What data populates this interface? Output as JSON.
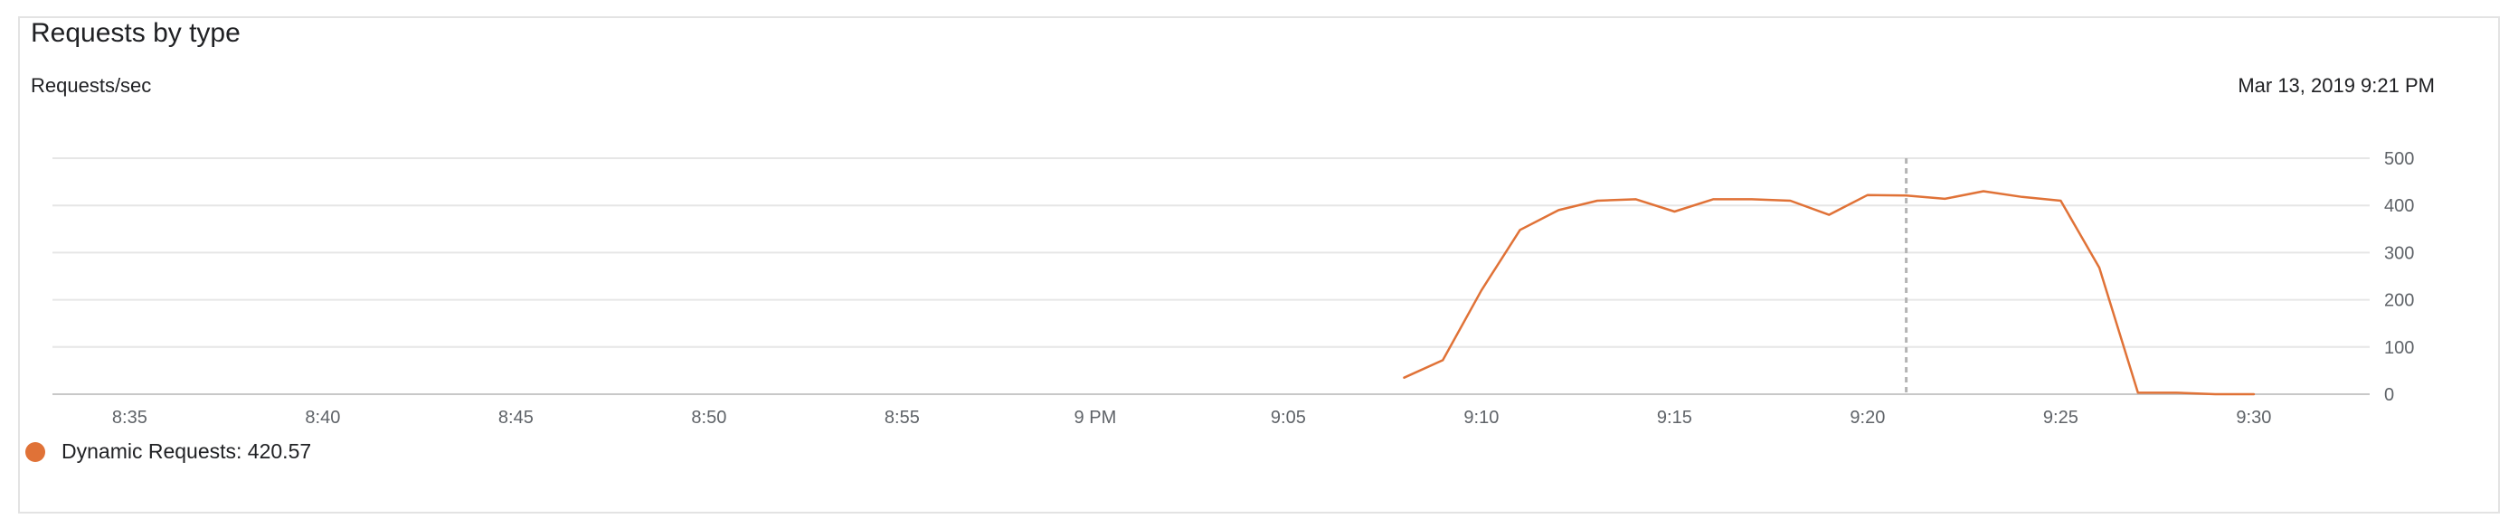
{
  "card": {
    "title": "Requests by type",
    "y_unit_label": "Requests/sec",
    "timestamp": "Mar 13, 2019 9:21 PM"
  },
  "legend": {
    "label": "Dynamic Requests: 420.57",
    "color": "#e07237"
  },
  "colors": {
    "series": "#e07237",
    "grid": "#e6e6e6",
    "axis": "#c8c8c8",
    "cursor": "#b4b4b4",
    "tick_text": "#5f6368"
  },
  "chart_data": {
    "type": "line",
    "title": "Requests by type",
    "ylabel": "Requests/sec",
    "xlabel": "",
    "xlim": [
      "8:33",
      "9:33"
    ],
    "ylim": [
      0,
      500
    ],
    "grid": true,
    "y_axis_side": "right",
    "x_ticks": [
      {
        "time": "8:35",
        "label": "8:35"
      },
      {
        "time": "8:40",
        "label": "8:40"
      },
      {
        "time": "8:45",
        "label": "8:45"
      },
      {
        "time": "8:50",
        "label": "8:50"
      },
      {
        "time": "8:55",
        "label": "8:55"
      },
      {
        "time": "9:00",
        "label": "9 PM"
      },
      {
        "time": "9:05",
        "label": "9:05"
      },
      {
        "time": "9:10",
        "label": "9:10"
      },
      {
        "time": "9:15",
        "label": "9:15"
      },
      {
        "time": "9:20",
        "label": "9:20"
      },
      {
        "time": "9:25",
        "label": "9:25"
      },
      {
        "time": "9:30",
        "label": "9:30"
      }
    ],
    "y_ticks": [
      0,
      100,
      200,
      300,
      400,
      500
    ],
    "cursor_time": "9:21",
    "series": [
      {
        "name": "Dynamic Requests",
        "color": "#e07237",
        "points": [
          {
            "time": "9:08",
            "value": 35
          },
          {
            "time": "9:09",
            "value": 72
          },
          {
            "time": "9:10",
            "value": 220
          },
          {
            "time": "9:11",
            "value": 348
          },
          {
            "time": "9:12",
            "value": 390
          },
          {
            "time": "9:13",
            "value": 410
          },
          {
            "time": "9:14",
            "value": 413
          },
          {
            "time": "9:15",
            "value": 387
          },
          {
            "time": "9:16",
            "value": 413
          },
          {
            "time": "9:17",
            "value": 413
          },
          {
            "time": "9:18",
            "value": 410
          },
          {
            "time": "9:19",
            "value": 380
          },
          {
            "time": "9:20",
            "value": 422
          },
          {
            "time": "9:21",
            "value": 421
          },
          {
            "time": "9:22",
            "value": 414
          },
          {
            "time": "9:23",
            "value": 430
          },
          {
            "time": "9:24",
            "value": 418
          },
          {
            "time": "9:25",
            "value": 410
          },
          {
            "time": "9:26",
            "value": 268
          },
          {
            "time": "9:27",
            "value": 3
          },
          {
            "time": "9:28",
            "value": 3
          },
          {
            "time": "9:29",
            "value": 0
          },
          {
            "time": "9:30",
            "value": 0
          }
        ]
      }
    ]
  }
}
